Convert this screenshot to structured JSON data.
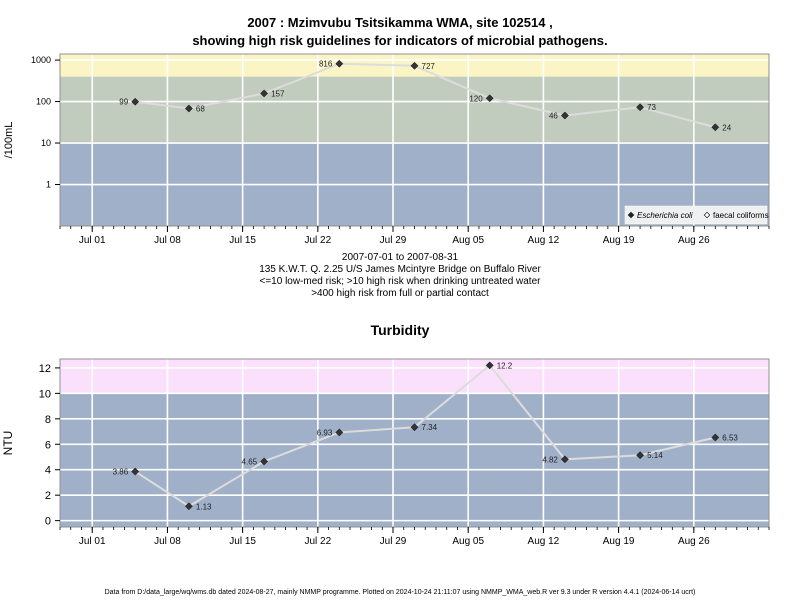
{
  "title": {
    "line1": "2007 : Mzimvubu Tsitsikamma WMA, site 102514 ,",
    "line2": "showing high risk guidelines for indicators of microbial pathogens."
  },
  "subtitle_lines": [
    "2007-07-01 to 2007-08-31",
    "135 K.W.T. Q. 2.25 U/S James Mcintyre Bridge on Buffalo River",
    "<=10 low-med risk; >10 high risk when drinking untreated water",
    ">400 high risk from full or partial contact"
  ],
  "footer": "Data from D:/data_large/wq/wms.db dated 2024-08-27, mainly NMMP programme. Plotted on 2024-10-24 21:11:07 using NMMP_WMA_web.R ver 9.3 under R version 4.4.1 (2024-06-14 ucrt)",
  "colors": {
    "panel_blue": "#a0b0c8",
    "band_green": "#c2ccbe",
    "band_yellow": "#fbf5c6",
    "band_pink": "#fbe0fb",
    "grid": "#ffffff",
    "line": "#dcdcdc",
    "marker": "#333333"
  },
  "chart_data": [
    {
      "type": "line",
      "title": "",
      "ylabel": "/100mL",
      "yscale": "log",
      "ylim": [
        0.1,
        1400
      ],
      "xlim": [
        "2007-06-28",
        "2007-09-02"
      ],
      "x_ticks": [
        "Jul 01",
        "Jul 08",
        "Jul 15",
        "Jul 22",
        "Jul 29",
        "Aug 05",
        "Aug 12",
        "Aug 19",
        "Aug 26"
      ],
      "x_tick_dates": [
        "2007-07-01",
        "2007-07-08",
        "2007-07-15",
        "2007-07-22",
        "2007-07-29",
        "2007-08-05",
        "2007-08-12",
        "2007-08-19",
        "2007-08-26"
      ],
      "y_ticks": [
        1,
        10,
        100,
        1000
      ],
      "y_tick_labels": [
        "1",
        "10",
        "100",
        "1000"
      ],
      "grid": true,
      "bands": [
        {
          "from": 0.1,
          "to": 10,
          "color": "#a0b0c8"
        },
        {
          "from": 10,
          "to": 400,
          "color": "#c2ccbe"
        },
        {
          "from": 400,
          "to": 1400,
          "color": "#fbf5c6"
        }
      ],
      "series": [
        {
          "name": "Escherichia coli",
          "marker": "filled-diamond",
          "x": [
            "2007-07-05",
            "2007-07-10",
            "2007-07-17",
            "2007-07-24",
            "2007-07-31",
            "2007-08-07",
            "2007-08-14",
            "2007-08-21",
            "2007-08-28"
          ],
          "y": [
            99,
            68,
            157,
            816,
            727,
            120,
            46,
            73,
            24
          ],
          "labels": [
            "99",
            "68",
            "157",
            "816",
            "727",
            "120",
            "46",
            "73",
            "24"
          ],
          "label_side": [
            "left",
            "right",
            "right",
            "left",
            "right",
            "left",
            "left",
            "right",
            "right"
          ]
        }
      ],
      "legend": {
        "placement": "bottom-right",
        "entries": [
          {
            "label": "Escherichia coli",
            "marker": "filled-diamond",
            "italic": true
          },
          {
            "label": "faecal coliforms",
            "marker": "open-diamond",
            "italic": false
          }
        ]
      }
    },
    {
      "type": "line",
      "title": "Turbidity",
      "ylabel": "NTU",
      "yscale": "linear",
      "ylim": [
        -0.5,
        12.7
      ],
      "xlim": [
        "2007-06-28",
        "2007-09-02"
      ],
      "x_ticks": [
        "Jul 01",
        "Jul 08",
        "Jul 15",
        "Jul 22",
        "Jul 29",
        "Aug 05",
        "Aug 12",
        "Aug 19",
        "Aug 26"
      ],
      "x_tick_dates": [
        "2007-07-01",
        "2007-07-08",
        "2007-07-15",
        "2007-07-22",
        "2007-07-29",
        "2007-08-05",
        "2007-08-12",
        "2007-08-19",
        "2007-08-26"
      ],
      "y_ticks": [
        0,
        2,
        4,
        6,
        8,
        10,
        12
      ],
      "y_tick_labels": [
        "0",
        "2",
        "4",
        "6",
        "8",
        "10",
        "12"
      ],
      "grid": true,
      "bands": [
        {
          "from": -0.5,
          "to": 10,
          "color": "#a0b0c8"
        },
        {
          "from": 10,
          "to": 12.7,
          "color": "#fbe0fb"
        }
      ],
      "series": [
        {
          "name": "Turbidity",
          "marker": "filled-diamond",
          "x": [
            "2007-07-05",
            "2007-07-10",
            "2007-07-17",
            "2007-07-24",
            "2007-07-31",
            "2007-08-07",
            "2007-08-14",
            "2007-08-21",
            "2007-08-28"
          ],
          "y": [
            3.86,
            1.13,
            4.65,
            6.93,
            7.34,
            12.2,
            4.82,
            5.14,
            6.53
          ],
          "labels": [
            "3.86",
            "1.13",
            "4.65",
            "6.93",
            "7.34",
            "12.2",
            "4.82",
            "5.14",
            "6.53"
          ],
          "label_side": [
            "left",
            "right",
            "left",
            "left",
            "right",
            "right",
            "left",
            "right",
            "right"
          ]
        }
      ]
    }
  ]
}
